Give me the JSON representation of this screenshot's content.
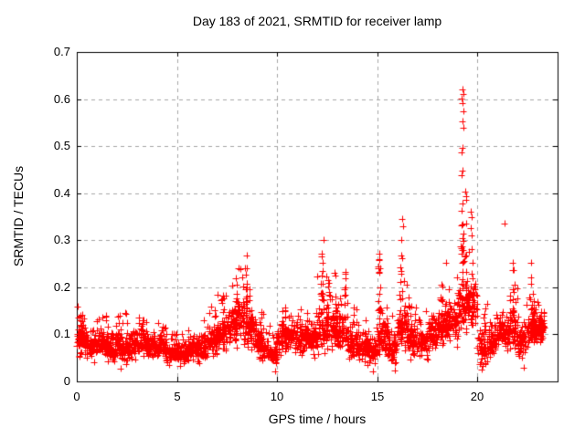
{
  "chart_data": {
    "type": "scatter",
    "title": "Day 183 of 2021, SRMTID for receiver lamp",
    "xlabel": "GPS time / hours",
    "ylabel": "SRMTID / TECUs",
    "xlim": [
      0,
      24
    ],
    "ylim": [
      0,
      0.7
    ],
    "xtick_values": [
      0,
      5,
      10,
      15,
      20
    ],
    "xtick_labels": [
      "0",
      "5",
      "10",
      "15",
      "20"
    ],
    "ytick_values": [
      0,
      0.1,
      0.2,
      0.3,
      0.4,
      0.5,
      0.6,
      0.7
    ],
    "ytick_labels": [
      "0",
      "0.1",
      "0.2",
      "0.3",
      "0.4",
      "0.5",
      "0.6",
      "0.7"
    ],
    "grid": "dashed-major-both-axes",
    "legend": "none",
    "marker": {
      "shape": "plus",
      "size": 7,
      "color": "#ff0000"
    },
    "seed": 42,
    "bins_format": [
      "t_start_h",
      "t_end_h",
      "count",
      "y_min_TECU",
      "y_max_TECU"
    ],
    "baseline_bins": [
      [
        0.0,
        0.5,
        60,
        0.035,
        0.17
      ],
      [
        0.5,
        1.0,
        60,
        0.04,
        0.125
      ],
      [
        1.0,
        1.5,
        60,
        0.045,
        0.14
      ],
      [
        1.5,
        2.0,
        60,
        0.035,
        0.125
      ],
      [
        2.0,
        2.5,
        60,
        0.025,
        0.145
      ],
      [
        2.5,
        3.0,
        60,
        0.045,
        0.125
      ],
      [
        3.0,
        3.5,
        60,
        0.05,
        0.145
      ],
      [
        3.5,
        4.0,
        60,
        0.045,
        0.125
      ],
      [
        4.0,
        4.5,
        60,
        0.04,
        0.135
      ],
      [
        4.5,
        5.0,
        60,
        0.03,
        0.105
      ],
      [
        5.0,
        5.5,
        60,
        0.03,
        0.105
      ],
      [
        5.5,
        6.0,
        60,
        0.04,
        0.115
      ],
      [
        6.0,
        6.5,
        60,
        0.03,
        0.13
      ],
      [
        6.5,
        7.0,
        60,
        0.04,
        0.16
      ],
      [
        7.0,
        7.5,
        60,
        0.05,
        0.185
      ],
      [
        7.5,
        8.0,
        60,
        0.05,
        0.22
      ],
      [
        8.0,
        8.5,
        60,
        0.06,
        0.25
      ],
      [
        8.5,
        9.0,
        60,
        0.05,
        0.2
      ],
      [
        9.0,
        9.5,
        60,
        0.04,
        0.15
      ],
      [
        9.5,
        10.0,
        60,
        0.025,
        0.12
      ],
      [
        10.0,
        10.5,
        60,
        0.05,
        0.16
      ],
      [
        10.5,
        11.0,
        60,
        0.06,
        0.16
      ],
      [
        11.0,
        11.5,
        60,
        0.05,
        0.155
      ],
      [
        11.5,
        12.0,
        60,
        0.045,
        0.17
      ],
      [
        12.0,
        12.5,
        60,
        0.04,
        0.23
      ],
      [
        12.5,
        13.0,
        60,
        0.05,
        0.21
      ],
      [
        13.0,
        13.5,
        60,
        0.05,
        0.2
      ],
      [
        13.5,
        14.0,
        60,
        0.04,
        0.16
      ],
      [
        14.0,
        14.5,
        60,
        0.03,
        0.135
      ],
      [
        14.5,
        15.0,
        60,
        0.025,
        0.12
      ],
      [
        15.0,
        15.5,
        60,
        0.04,
        0.19
      ],
      [
        15.5,
        16.0,
        60,
        0.03,
        0.15
      ],
      [
        16.0,
        16.5,
        60,
        0.05,
        0.22
      ],
      [
        16.5,
        17.0,
        60,
        0.04,
        0.17
      ],
      [
        17.0,
        17.5,
        60,
        0.04,
        0.15
      ],
      [
        17.5,
        18.0,
        60,
        0.05,
        0.18
      ],
      [
        18.0,
        18.5,
        60,
        0.06,
        0.22
      ],
      [
        18.5,
        19.0,
        60,
        0.07,
        0.21
      ],
      [
        19.0,
        19.5,
        60,
        0.08,
        0.3
      ],
      [
        19.5,
        20.0,
        60,
        0.08,
        0.3
      ],
      [
        20.0,
        20.5,
        55,
        0.02,
        0.17
      ],
      [
        20.5,
        21.0,
        60,
        0.04,
        0.15
      ],
      [
        21.0,
        21.5,
        60,
        0.05,
        0.18
      ],
      [
        21.5,
        22.0,
        60,
        0.05,
        0.2
      ],
      [
        22.0,
        22.5,
        60,
        0.03,
        0.17
      ],
      [
        22.5,
        23.0,
        60,
        0.06,
        0.18
      ],
      [
        23.0,
        23.35,
        45,
        0.08,
        0.17
      ]
    ],
    "spikes_format": [
      "t_center_h",
      "t_width_h",
      "count",
      "y_base_TECU",
      "y_top_TECU"
    ],
    "spike_clusters": [
      [
        0.15,
        0.12,
        10,
        0.08,
        0.168
      ],
      [
        1.5,
        0.08,
        5,
        0.08,
        0.148
      ],
      [
        2.1,
        0.08,
        5,
        0.08,
        0.143
      ],
      [
        3.3,
        0.08,
        5,
        0.08,
        0.14
      ],
      [
        4.2,
        0.08,
        5,
        0.07,
        0.133
      ],
      [
        6.4,
        0.08,
        5,
        0.07,
        0.13
      ],
      [
        6.9,
        0.08,
        7,
        0.08,
        0.158
      ],
      [
        7.3,
        0.1,
        7,
        0.09,
        0.185
      ],
      [
        7.95,
        0.12,
        12,
        0.1,
        0.225
      ],
      [
        8.45,
        0.12,
        14,
        0.12,
        0.262
      ],
      [
        8.62,
        0.08,
        8,
        0.1,
        0.235
      ],
      [
        9.2,
        0.06,
        5,
        0.08,
        0.152
      ],
      [
        10.4,
        0.08,
        6,
        0.09,
        0.158
      ],
      [
        11.5,
        0.08,
        6,
        0.09,
        0.168
      ],
      [
        12.25,
        0.1,
        16,
        0.12,
        0.295
      ],
      [
        12.55,
        0.08,
        8,
        0.1,
        0.218
      ],
      [
        12.9,
        0.08,
        10,
        0.1,
        0.248
      ],
      [
        13.4,
        0.08,
        8,
        0.1,
        0.238
      ],
      [
        15.1,
        0.1,
        14,
        0.1,
        0.268
      ],
      [
        16.2,
        0.1,
        14,
        0.1,
        0.315
      ],
      [
        16.55,
        0.08,
        6,
        0.08,
        0.208
      ],
      [
        18.2,
        0.1,
        10,
        0.09,
        0.238
      ],
      [
        18.55,
        0.08,
        6,
        0.09,
        0.198
      ],
      [
        19.25,
        0.1,
        22,
        0.12,
        0.385
      ],
      [
        19.45,
        0.08,
        10,
        0.15,
        0.4
      ],
      [
        19.7,
        0.1,
        12,
        0.12,
        0.368
      ],
      [
        20.35,
        0.08,
        6,
        0.05,
        0.158
      ],
      [
        21.8,
        0.09,
        10,
        0.08,
        0.285
      ],
      [
        22.7,
        0.1,
        10,
        0.08,
        0.24
      ],
      [
        22.82,
        0.1,
        16,
        0.1,
        0.148
      ],
      [
        23.2,
        0.12,
        12,
        0.09,
        0.162
      ]
    ],
    "outlier_points": [
      [
        19.25,
        0.62
      ],
      [
        19.28,
        0.611
      ],
      [
        19.22,
        0.601
      ],
      [
        19.26,
        0.591
      ],
      [
        19.3,
        0.574
      ],
      [
        19.25,
        0.553
      ],
      [
        19.29,
        0.539
      ],
      [
        19.24,
        0.496
      ],
      [
        19.21,
        0.487
      ],
      [
        19.26,
        0.448
      ],
      [
        19.22,
        0.438
      ],
      [
        19.4,
        0.403
      ],
      [
        19.46,
        0.394
      ],
      [
        21.35,
        0.335
      ],
      [
        16.25,
        0.345
      ],
      [
        16.3,
        0.33
      ],
      [
        12.3,
        0.3
      ],
      [
        8.48,
        0.268
      ],
      [
        15.12,
        0.272
      ],
      [
        18.42,
        0.252
      ],
      [
        22.68,
        0.252
      ],
      [
        2.2,
        0.027
      ],
      [
        9.9,
        0.022
      ],
      [
        14.8,
        0.022
      ],
      [
        15.9,
        0.024
      ],
      [
        20.2,
        0.025
      ],
      [
        20.28,
        0.032
      ],
      [
        22.3,
        0.03
      ]
    ]
  },
  "colors": {
    "marker": "#ff0000",
    "grid": "#a6a6a6",
    "frame": "#000000",
    "text": "#000000",
    "background": "#ffffff"
  }
}
